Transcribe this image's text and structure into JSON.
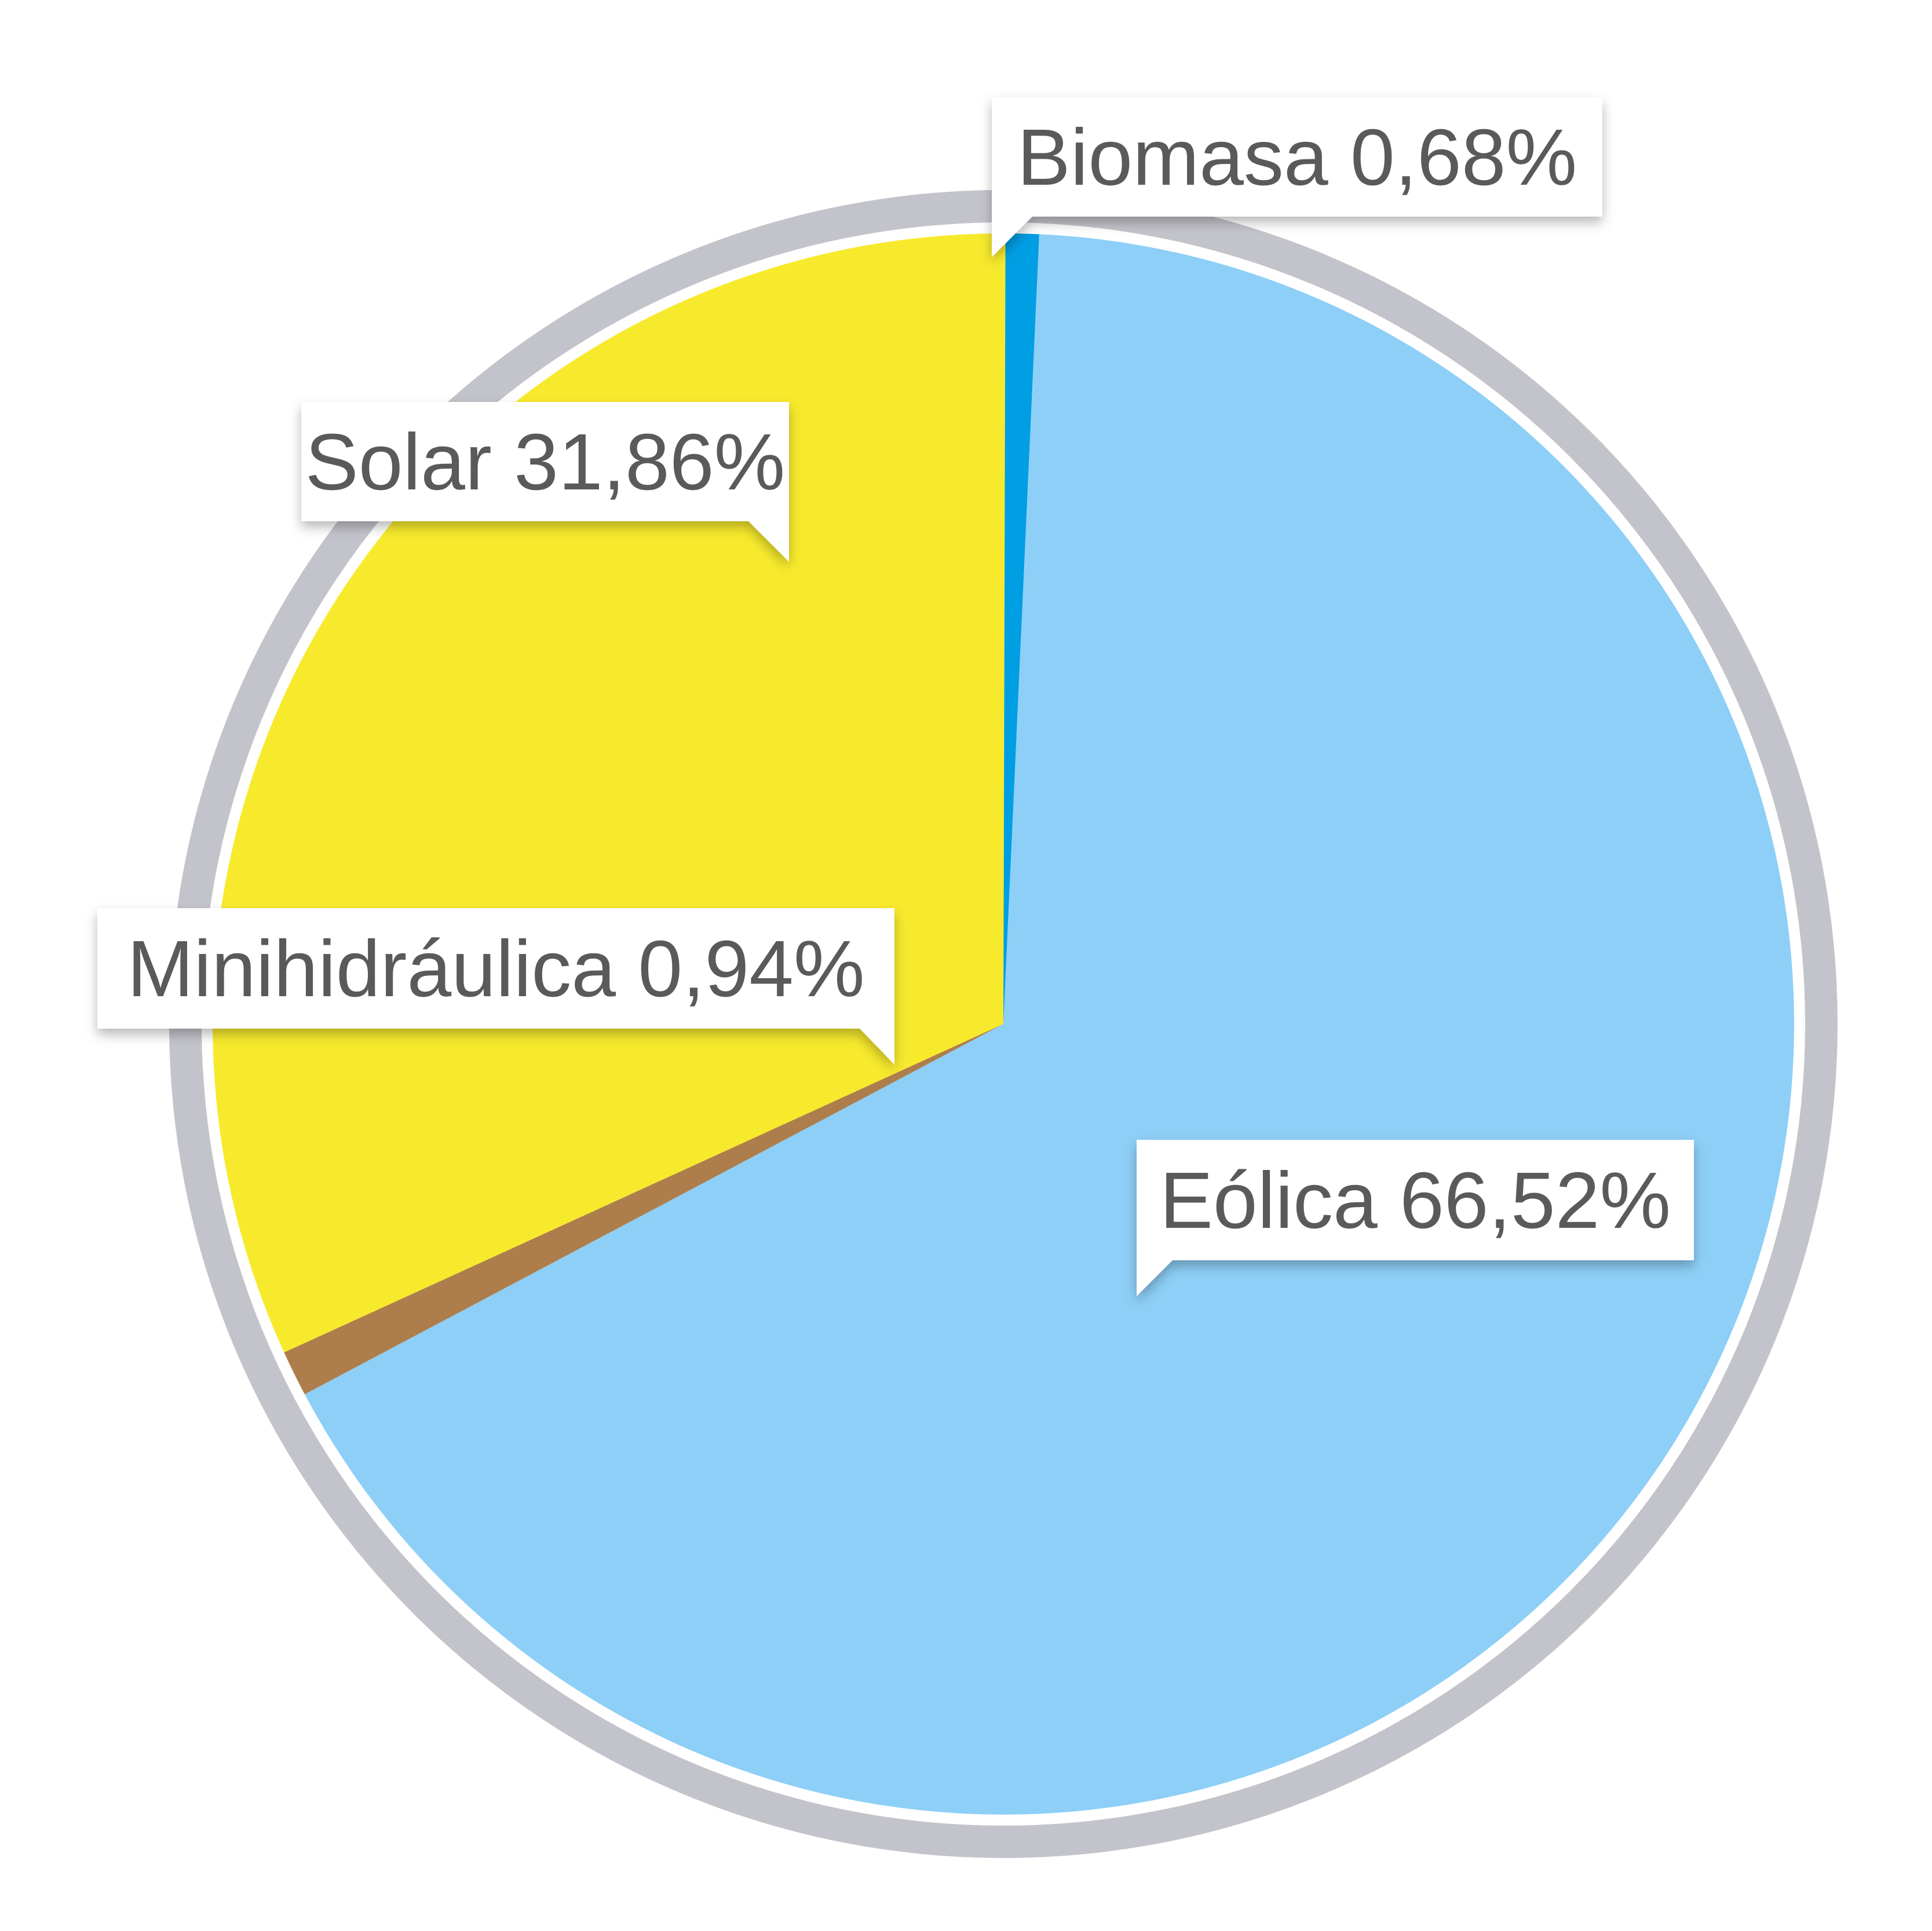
{
  "chart_data": {
    "type": "pie",
    "slices": [
      {
        "label": "Eólica",
        "value": 66.52,
        "display": "Eólica 66,52%",
        "color": "#8ecff7"
      },
      {
        "label": "Minihidráulica",
        "value": 0.94,
        "display": "Minihidráulica 0,94%",
        "color": "#ad7e4b"
      },
      {
        "label": "Solar",
        "value": 31.86,
        "display": "Solar 31,86%",
        "color": "#f7ea2d"
      },
      {
        "label": "Biomasa",
        "value": 0.68,
        "display": "Biomasa 0,68%",
        "color": "#009ee3"
      }
    ],
    "ring_color": "#c3c4cb",
    "callout_color": "#ffffff",
    "text_color": "#5a5a5c"
  }
}
